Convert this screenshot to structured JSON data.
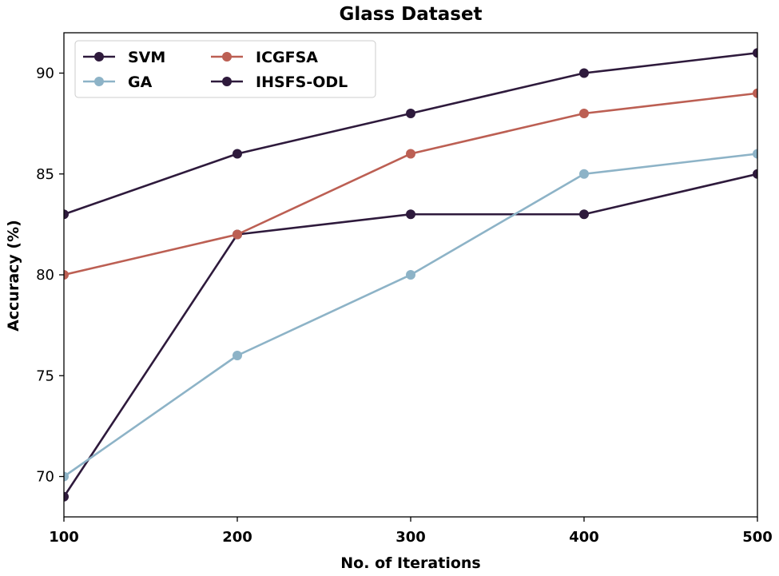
{
  "chart_data": {
    "type": "line",
    "title": "Glass Dataset",
    "xlabel": "No. of Iterations",
    "ylabel": "Accuracy (%)",
    "x": [
      100,
      200,
      300,
      400,
      500
    ],
    "xlim": [
      100,
      500
    ],
    "ylim": [
      68,
      92
    ],
    "xticks": [
      100,
      200,
      300,
      400,
      500
    ],
    "yticks": [
      70,
      75,
      80,
      85,
      90
    ],
    "grid": false,
    "legend_position": "top-left",
    "legend_columns": 2,
    "series": [
      {
        "name": "SVM",
        "color": "#2e1a3c",
        "values": [
          69,
          82,
          83,
          83,
          85
        ]
      },
      {
        "name": "GA",
        "color": "#8db3c7",
        "values": [
          70,
          76,
          80,
          85,
          86
        ]
      },
      {
        "name": "ICGFSA",
        "color": "#bc5f53",
        "values": [
          80,
          82,
          86,
          88,
          89
        ]
      },
      {
        "name": "IHSFS-ODL",
        "color": "#2e1a3c",
        "values": [
          83,
          86,
          88,
          90,
          91
        ]
      }
    ]
  }
}
